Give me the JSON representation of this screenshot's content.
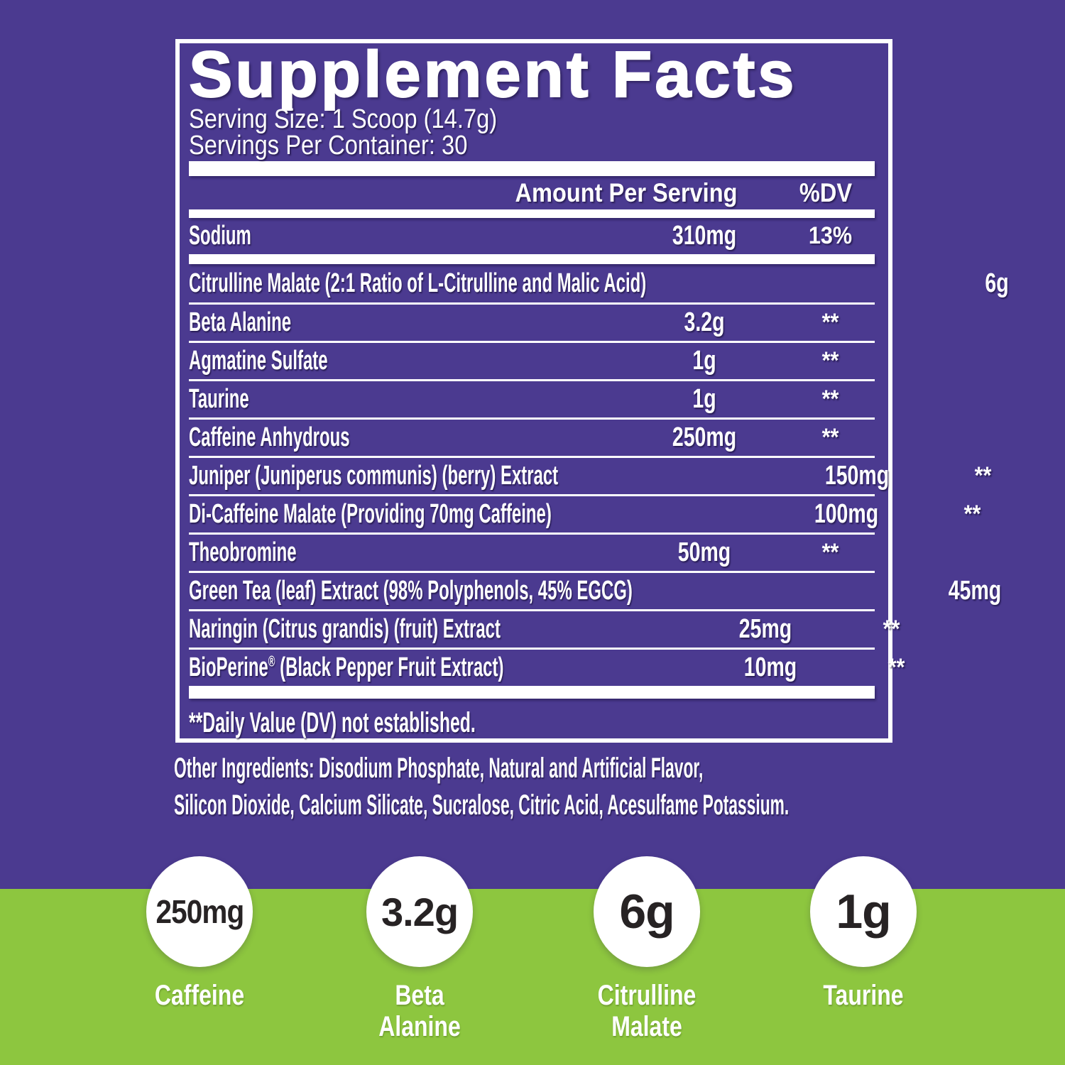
{
  "colors": {
    "background_purple": "#4b3a90",
    "band_green": "#8dc63f",
    "panel_border_white": "#ffffff",
    "badge_text_dark": "#272324"
  },
  "panel": {
    "title": "Supplement Facts",
    "serving_size": "Serving Size: 1 Scoop (14.7g)",
    "servings_per_container": "Servings Per Container: 30",
    "columns": {
      "amount": "Amount Per Serving",
      "dv": "%DV"
    },
    "sodium_row": {
      "name": "Sodium",
      "amount": "310mg",
      "dv": "13%"
    },
    "rows": [
      {
        "name": "Citrulline Malate (2:1 Ratio of L-Citrulline and Malic Acid)",
        "amount": "6g",
        "dv": "**"
      },
      {
        "name": "Beta Alanine",
        "amount": "3.2g",
        "dv": "**"
      },
      {
        "name": "Agmatine Sulfate",
        "amount": "1g",
        "dv": "**"
      },
      {
        "name": "Taurine",
        "amount": "1g",
        "dv": "**"
      },
      {
        "name": "Caffeine Anhydrous",
        "amount": "250mg",
        "dv": "**"
      },
      {
        "name": "Juniper (Juniperus communis) (berry) Extract",
        "amount": "150mg",
        "dv": "**"
      },
      {
        "name": "Di-Caffeine Malate (Providing 70mg Caffeine)",
        "amount": "100mg",
        "dv": "**"
      },
      {
        "name": "Theobromine",
        "amount": "50mg",
        "dv": "**"
      },
      {
        "name": "Green Tea (leaf) Extract (98% Polyphenols, 45% EGCG)",
        "amount": "45mg",
        "dv": "**"
      },
      {
        "name": "Naringin (Citrus grandis) (fruit) Extract",
        "amount": "25mg",
        "dv": "**"
      },
      {
        "name": "BioPerine® (Black Pepper Fruit Extract)",
        "amount": "10mg",
        "dv": "**"
      }
    ],
    "footnote": "**Daily Value (DV) not established."
  },
  "other_ingredients": {
    "line1": "Other Ingredients: Disodium Phosphate, Natural and Artificial Flavor,",
    "line2": "Silicon Dioxide, Calcium Silicate, Sucralose, Citric Acid, Acesulfame Potassium."
  },
  "badges": [
    {
      "value": "250mg",
      "label": "Caffeine"
    },
    {
      "value": "3.2g",
      "label": "Beta\nAlanine"
    },
    {
      "value": "6g",
      "label": "Citrulline\nMalate"
    },
    {
      "value": "1g",
      "label": "Taurine"
    }
  ]
}
